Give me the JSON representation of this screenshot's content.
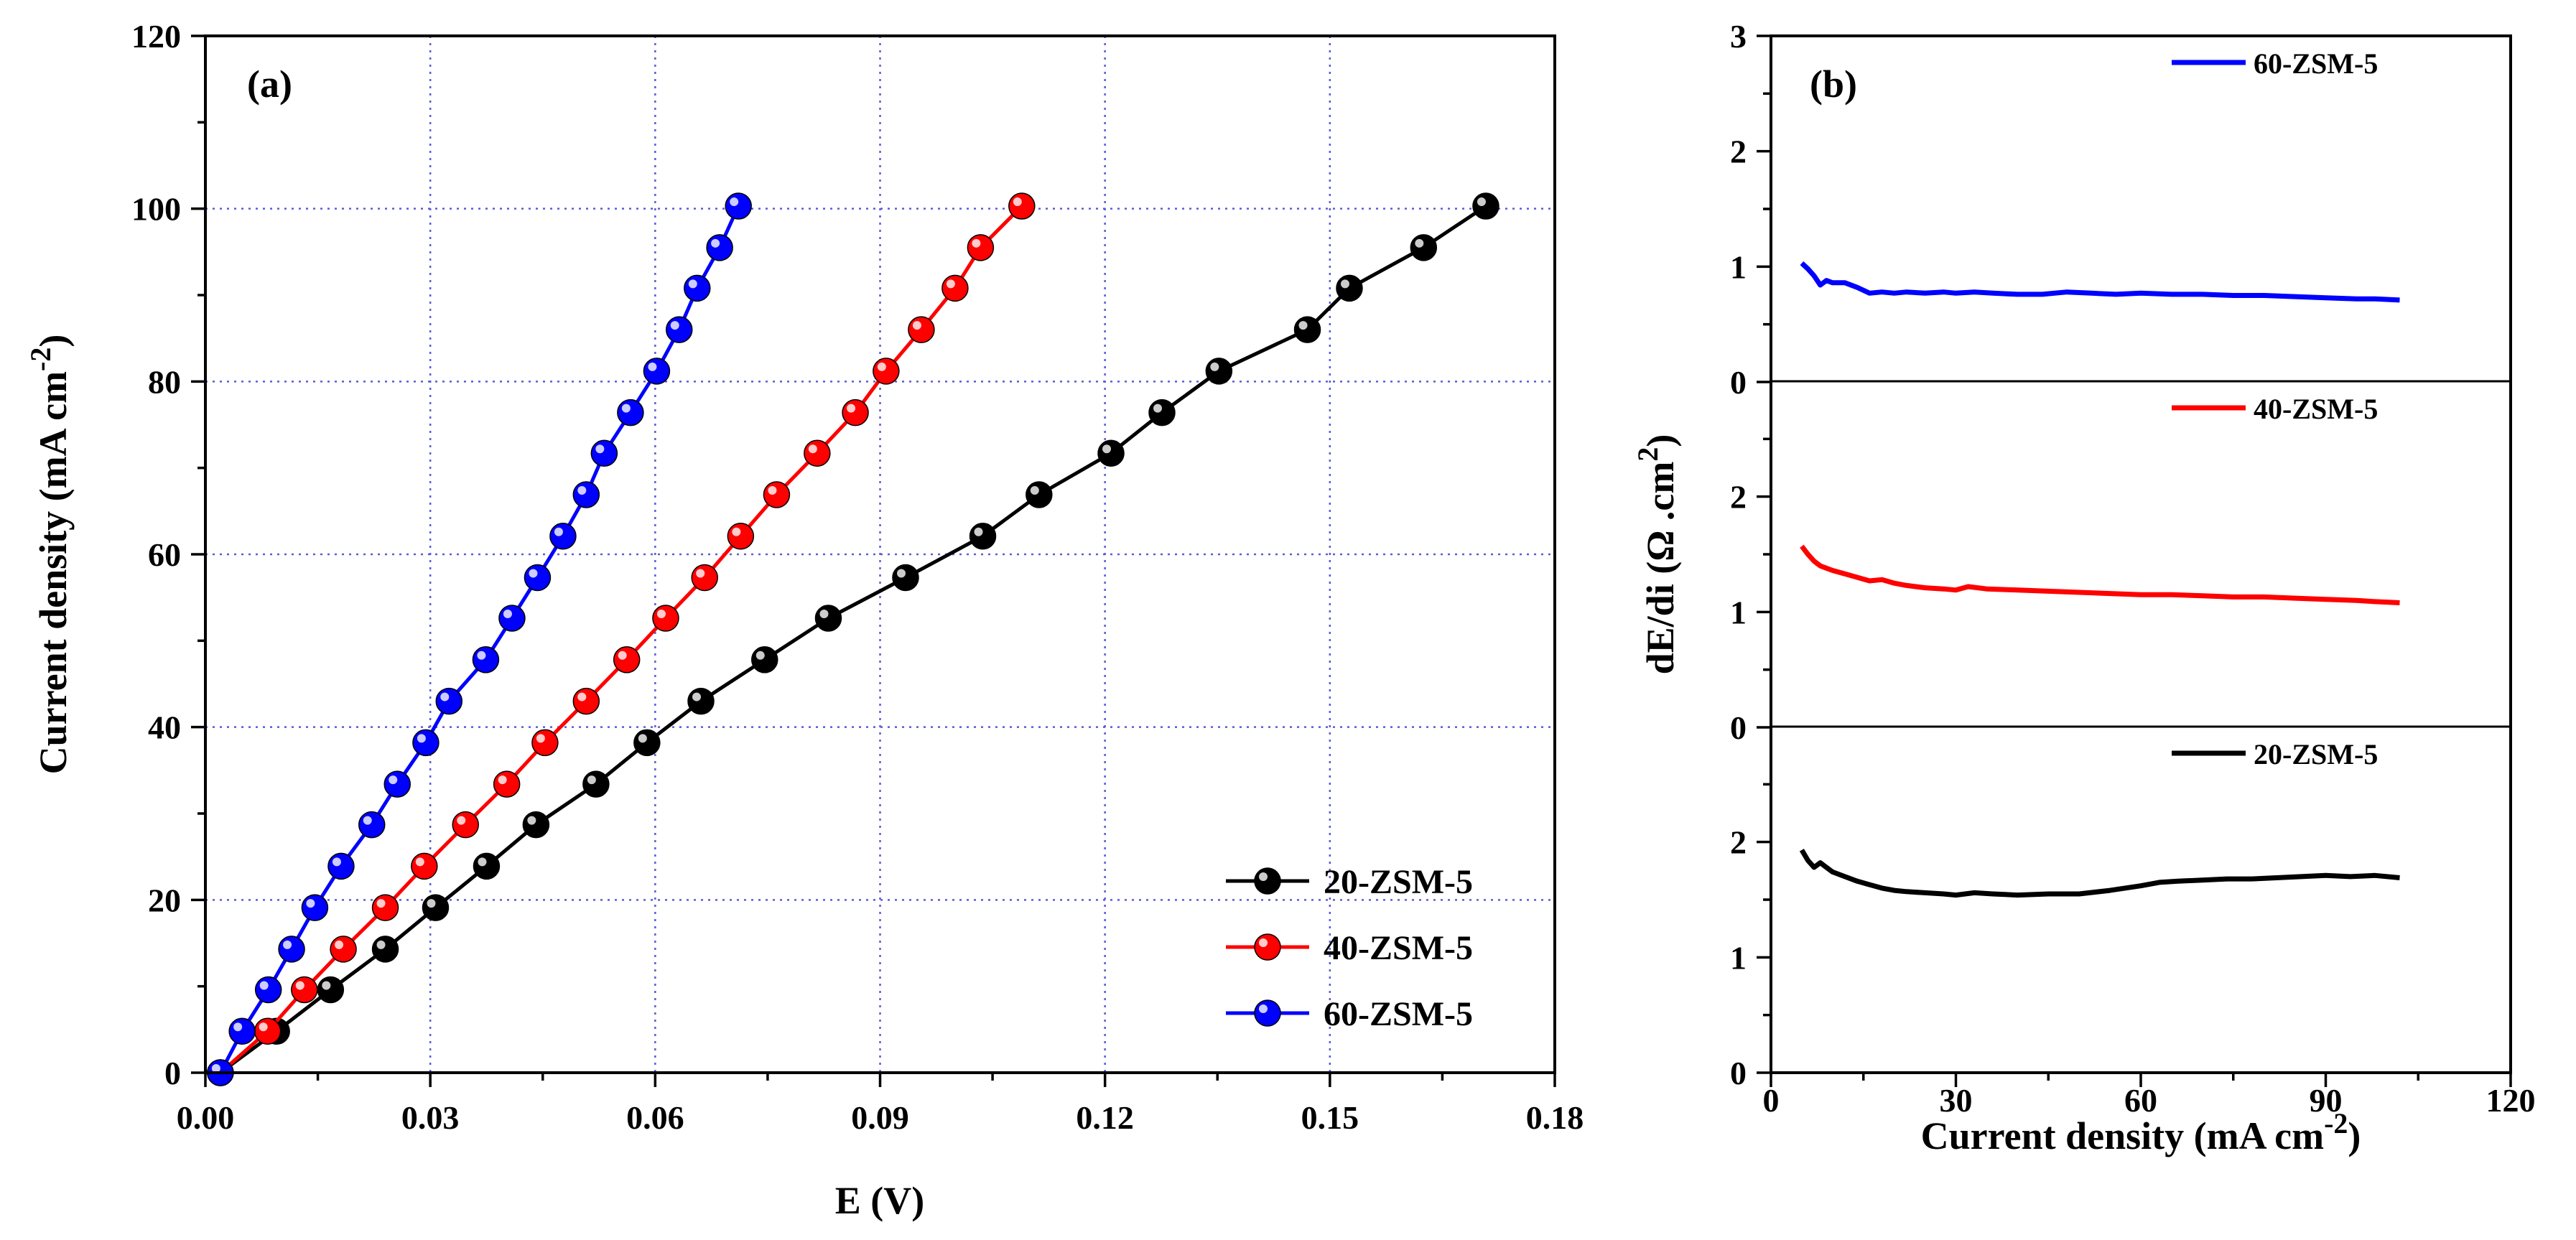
{
  "colors": {
    "20-ZSM-5": "#000000",
    "40-ZSM-5": "#ff0000",
    "60-ZSM-5": "#0000ff",
    "grid": "#5b5bd6"
  },
  "chart_data": [
    {
      "id": "a",
      "panel_label": "(a)",
      "type": "line",
      "xlabel": "E (V)",
      "ylabel_main": "Current density (mA cm",
      "ylabel_sup": "-2",
      "ylabel_close": ")",
      "xlim": [
        0,
        0.18
      ],
      "ylim": [
        0,
        120
      ],
      "xticks": [
        0,
        0.03,
        0.06,
        0.09,
        0.12,
        0.15,
        0.18
      ],
      "xtick_labels": [
        "0.00",
        "0.03",
        "0.06",
        "0.09",
        "0.12",
        "0.15",
        "0.18"
      ],
      "yticks": [
        0,
        20,
        40,
        60,
        80,
        100,
        120
      ],
      "ytick_labels": [
        "0",
        "20",
        "40",
        "60",
        "80",
        "100",
        "120"
      ],
      "grid": true,
      "legend_position": "bottom-right",
      "series": [
        {
          "name": "20-ZSM-5",
          "color": "#000000",
          "x": [
            0.002,
            0.0095,
            0.0167,
            0.024,
            0.0307,
            0.0375,
            0.0441,
            0.0521,
            0.0589,
            0.0661,
            0.0746,
            0.0831,
            0.0934,
            0.1037,
            0.1112,
            0.1208,
            0.1276,
            0.1352,
            0.147,
            0.1526,
            0.1625,
            0.1708
          ],
          "y": [
            0,
            4.8,
            9.6,
            14.3,
            19.1,
            23.9,
            28.7,
            33.4,
            38.2,
            43.0,
            47.8,
            52.6,
            57.3,
            62.1,
            66.9,
            71.7,
            76.4,
            81.2,
            86.0,
            90.8,
            95.5,
            100.3
          ]
        },
        {
          "name": "40-ZSM-5",
          "color": "#ff0000",
          "x": [
            0.002,
            0.0083,
            0.0132,
            0.0184,
            0.024,
            0.0292,
            0.0347,
            0.0402,
            0.0453,
            0.0508,
            0.0562,
            0.0614,
            0.0666,
            0.0714,
            0.0762,
            0.0816,
            0.0867,
            0.0908,
            0.0955,
            0.1,
            0.1034,
            0.1089
          ],
          "y": [
            0,
            4.8,
            9.6,
            14.3,
            19.1,
            23.9,
            28.7,
            33.4,
            38.2,
            43.0,
            47.8,
            52.6,
            57.3,
            62.1,
            66.9,
            71.7,
            76.4,
            81.2,
            86.0,
            90.8,
            95.5,
            100.3
          ]
        },
        {
          "name": "60-ZSM-5",
          "color": "#0000ff",
          "x": [
            0.002,
            0.0049,
            0.0084,
            0.0115,
            0.0146,
            0.0181,
            0.0222,
            0.0256,
            0.0294,
            0.0325,
            0.0374,
            0.0409,
            0.0443,
            0.0477,
            0.0508,
            0.0532,
            0.0567,
            0.0602,
            0.0632,
            0.0656,
            0.0686,
            0.0711
          ],
          "y": [
            0,
            4.8,
            9.6,
            14.3,
            19.1,
            23.9,
            28.7,
            33.4,
            38.2,
            43.0,
            47.8,
            52.6,
            57.3,
            62.1,
            66.9,
            71.7,
            76.4,
            81.2,
            86.0,
            90.8,
            95.5,
            100.3
          ]
        }
      ]
    },
    {
      "id": "b",
      "panel_label": "(b)",
      "type": "line",
      "stacked_panels": true,
      "xlabel_main": "Current density (mA cm",
      "xlabel_sup": "-2",
      "xlabel_close": ")",
      "ylabel_main": "dE/di (Ω .cm",
      "ylabel_sup": "2",
      "ylabel_close": ")",
      "xlim": [
        0,
        120
      ],
      "xticks": [
        0,
        30,
        60,
        90,
        120
      ],
      "xtick_labels": [
        "0",
        "30",
        "60",
        "90",
        "120"
      ],
      "grid": false,
      "legend_position": "top-right of each sub-panel",
      "subpanels": [
        {
          "name": "60-ZSM-5",
          "color": "#0000ff",
          "ylim": [
            0,
            3
          ],
          "yticks": [
            0,
            1,
            2,
            3
          ],
          "ytick_labels": [
            "0",
            "1",
            "2",
            "3"
          ],
          "x": [
            5,
            6,
            7,
            8,
            9,
            10,
            12,
            14,
            16,
            18,
            20,
            22,
            25,
            28,
            30,
            33,
            36,
            40,
            44,
            48,
            52,
            56,
            60,
            65,
            70,
            75,
            80,
            85,
            90,
            95,
            98,
            102
          ],
          "y": [
            1.03,
            0.98,
            0.92,
            0.84,
            0.88,
            0.86,
            0.86,
            0.82,
            0.77,
            0.78,
            0.77,
            0.78,
            0.77,
            0.78,
            0.77,
            0.78,
            0.77,
            0.76,
            0.76,
            0.78,
            0.77,
            0.76,
            0.77,
            0.76,
            0.76,
            0.75,
            0.75,
            0.74,
            0.73,
            0.72,
            0.72,
            0.71
          ]
        },
        {
          "name": "40-ZSM-5",
          "color": "#ff0000",
          "ylim": [
            0,
            3
          ],
          "yticks": [
            0,
            1,
            2
          ],
          "ytick_labels": [
            "0",
            "1",
            "2"
          ],
          "x": [
            5,
            6,
            7,
            8,
            10,
            12,
            14,
            16,
            18,
            20,
            22,
            25,
            28,
            30,
            32,
            35,
            40,
            45,
            50,
            55,
            60,
            65,
            70,
            75,
            80,
            85,
            90,
            95,
            98,
            102
          ],
          "y": [
            1.57,
            1.5,
            1.44,
            1.4,
            1.36,
            1.33,
            1.3,
            1.27,
            1.28,
            1.25,
            1.23,
            1.21,
            1.2,
            1.19,
            1.22,
            1.2,
            1.19,
            1.18,
            1.17,
            1.16,
            1.15,
            1.15,
            1.14,
            1.13,
            1.13,
            1.12,
            1.11,
            1.1,
            1.09,
            1.08
          ]
        },
        {
          "name": "20-ZSM-5",
          "color": "#000000",
          "ylim": [
            0,
            3
          ],
          "yticks": [
            0,
            1,
            2
          ],
          "ytick_labels": [
            "0",
            "1",
            "2"
          ],
          "x": [
            5,
            6,
            7,
            8,
            10,
            12,
            14,
            16,
            18,
            20,
            22,
            25,
            28,
            30,
            33,
            36,
            40,
            45,
            50,
            55,
            60,
            63,
            66,
            70,
            74,
            78,
            82,
            86,
            90,
            94,
            98,
            102
          ],
          "y": [
            1.93,
            1.84,
            1.78,
            1.82,
            1.74,
            1.7,
            1.66,
            1.63,
            1.6,
            1.58,
            1.57,
            1.56,
            1.55,
            1.54,
            1.56,
            1.55,
            1.54,
            1.55,
            1.55,
            1.58,
            1.62,
            1.65,
            1.66,
            1.67,
            1.68,
            1.68,
            1.69,
            1.7,
            1.71,
            1.7,
            1.71,
            1.69
          ]
        }
      ]
    }
  ]
}
